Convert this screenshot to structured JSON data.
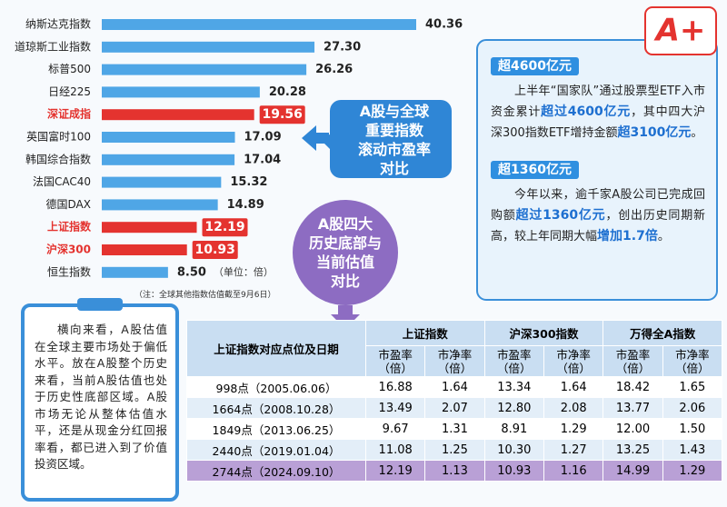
{
  "chart_data": {
    "type": "bar",
    "orientation": "horizontal",
    "categories": [
      "纳斯达克指数",
      "道琼斯工业指数",
      "标普500",
      "日经225",
      "深证成指",
      "英国富时100",
      "韩国综合指数",
      "法国CAC40",
      "德国DAX",
      "上证指数",
      "沪深300",
      "恒生指数"
    ],
    "values": [
      40.36,
      27.3,
      26.26,
      20.28,
      19.56,
      17.09,
      17.04,
      15.32,
      14.89,
      12.19,
      10.93,
      8.5
    ],
    "value_labels": [
      "40.36",
      "27.30",
      "26.26",
      "20.28",
      "19.56",
      "17.09",
      "17.04",
      "15.32",
      "14.89",
      "12.19",
      "10.93",
      "8.50"
    ],
    "colors": [
      "#4fa6e6",
      "#4fa6e6",
      "#4fa6e6",
      "#4fa6e6",
      "#e4332f",
      "#4fa6e6",
      "#4fa6e6",
      "#4fa6e6",
      "#4fa6e6",
      "#e4332f",
      "#e4332f",
      "#4fa6e6"
    ],
    "label_colors": [
      "#222222",
      "#222222",
      "#222222",
      "#222222",
      "#e4332f",
      "#222222",
      "#222222",
      "#222222",
      "#222222",
      "#e4332f",
      "#e4332f",
      "#222222"
    ],
    "unit_note": "（单位：倍）",
    "footnote": "（注：全球其他指数估值截至9月6日）"
  },
  "callout_chart": "A股与全球\n重要指数\n滚动市盈率\n对比",
  "callout_table": "A股四大\n历史底部与\n当前估值\n对比",
  "logo": "A+",
  "highlights": [
    {
      "tag": "超4600亿元",
      "segments": [
        {
          "text": "上半年“国家队”通过股票型ETF入市资金累计",
          "emphasis": false
        },
        {
          "text": "超过4600亿元",
          "emphasis": true
        },
        {
          "text": "，其中四大沪深300指数ETF增持金额",
          "emphasis": false
        },
        {
          "text": "超3100亿元",
          "emphasis": true
        },
        {
          "text": "。",
          "emphasis": false
        }
      ]
    },
    {
      "tag": "超1360亿元",
      "segments": [
        {
          "text": "今年以来，逾千家A股公司已完成回购额",
          "emphasis": false
        },
        {
          "text": "超过1360亿元",
          "emphasis": true
        },
        {
          "text": "，创出历史同期新高，较上年同期大幅",
          "emphasis": false
        },
        {
          "text": "增加1.7倍",
          "emphasis": true
        },
        {
          "text": "。",
          "emphasis": false
        }
      ]
    }
  ],
  "note": "横向来看，A股估值在全球主要市场处于偏低水平。放在A股整个历史来看，当前A股估值也处于历史性底部区域。A股市场无论从整体估值水平，还是从现金分红回报率看，都已进入到了价值投资区域。",
  "table": {
    "corner": "上证指数对应点位及日期",
    "groups": [
      "上证指数",
      "沪深300指数",
      "万得全A指数"
    ],
    "subheaders": [
      "市盈率\n（倍）",
      "市净率\n（倍）",
      "市盈率\n（倍）",
      "市净率\n（倍）",
      "市盈率\n（倍）",
      "市净率\n（倍）"
    ],
    "rows": [
      [
        "998点（2005.06.06）",
        "16.88",
        "1.64",
        "13.34",
        "1.64",
        "18.42",
        "1.65"
      ],
      [
        "1664点（2008.10.28）",
        "13.49",
        "2.07",
        "12.80",
        "2.08",
        "13.77",
        "2.06"
      ],
      [
        "1849点（2013.06.25）",
        "9.67",
        "1.31",
        "8.91",
        "1.29",
        "12.00",
        "1.50"
      ],
      [
        "2440点（2019.01.04）",
        "11.08",
        "1.25",
        "10.30",
        "1.27",
        "13.25",
        "1.43"
      ],
      [
        "2744点（2024.09.10）",
        "12.19",
        "1.13",
        "10.93",
        "1.16",
        "14.99",
        "1.29"
      ]
    ],
    "row_colors": [
      "#ffffff",
      "#e3eef8",
      "#ffffff",
      "#e3eef8",
      "#b9a0d6"
    ]
  }
}
